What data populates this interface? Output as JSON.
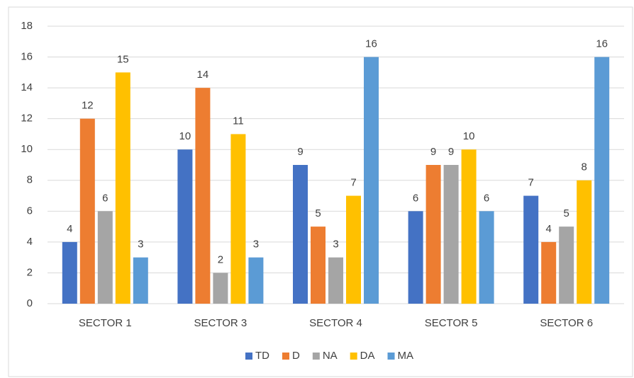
{
  "chart_data": {
    "type": "bar",
    "categories": [
      "SECTOR 1",
      "SECTOR 3",
      "SECTOR 4",
      "SECTOR 5",
      "SECTOR 6"
    ],
    "series": [
      {
        "name": "TD",
        "color": "#4472c4",
        "values": [
          4,
          10,
          9,
          6,
          7
        ]
      },
      {
        "name": "D",
        "color": "#ed7d31",
        "values": [
          12,
          14,
          5,
          9,
          4
        ]
      },
      {
        "name": "NA",
        "color": "#a5a5a5",
        "values": [
          6,
          2,
          3,
          9,
          5
        ]
      },
      {
        "name": "DA",
        "color": "#ffc000",
        "values": [
          15,
          11,
          7,
          10,
          8
        ]
      },
      {
        "name": "MA",
        "color": "#5b9bd5",
        "values": [
          3,
          3,
          16,
          6,
          16
        ]
      }
    ],
    "ylim": [
      0,
      18
    ],
    "yticks": [
      0,
      2,
      4,
      6,
      8,
      10,
      12,
      14,
      16,
      18
    ],
    "grid": true,
    "legend": "bottom"
  }
}
